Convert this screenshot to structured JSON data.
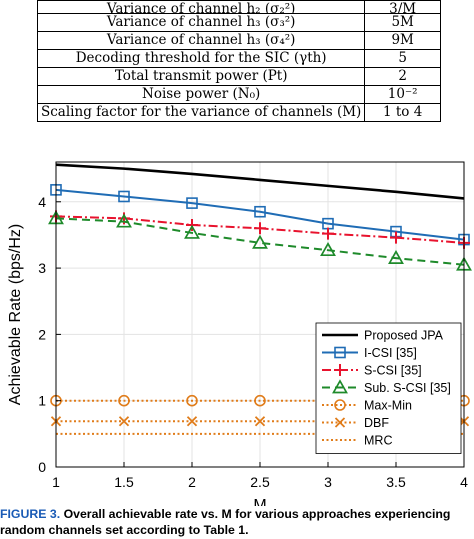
{
  "table": {
    "rows": [
      {
        "param": "Variance of channel h₂ (σ₂²)",
        "value": "3/M"
      },
      {
        "param": "Variance of channel h₃ (σ₃²)",
        "value": "5M"
      },
      {
        "param": "Variance of channel h₃ (σ₄²)",
        "value": "9M"
      },
      {
        "param": "Decoding threshold for the SIC (γth)",
        "value": "5"
      },
      {
        "param": "Total transmit power (Pt)",
        "value": "2"
      },
      {
        "param": "Noise power (N₀)",
        "value": "10⁻²"
      },
      {
        "param": "Scaling factor for the variance of channels (M)",
        "value": "1 to 4"
      }
    ]
  },
  "caption": {
    "label": "FIGURE 3.",
    "text": "Overall achievable rate vs. M for various approaches experiencing random channels set according to Table 1."
  },
  "chart_data": {
    "type": "line",
    "xlabel": "M",
    "ylabel": "Achievable Rate (bps/Hz)",
    "xlim": [
      1,
      4
    ],
    "ylim": [
      0,
      4.6
    ],
    "x": [
      1,
      1.5,
      2,
      2.5,
      3,
      3.5,
      4
    ],
    "xticks": [
      "1",
      "1.5",
      "2",
      "2.5",
      "3",
      "3.5",
      "4"
    ],
    "yticks": [
      "0",
      "1",
      "2",
      "3",
      "4"
    ],
    "grid": true,
    "legend_position": "bottom-right",
    "series": [
      {
        "name": "Proposed JPA",
        "color": "#000000",
        "marker": "none",
        "dash": "solid",
        "values": [
          4.56,
          4.5,
          4.42,
          4.33,
          4.24,
          4.15,
          4.05
        ]
      },
      {
        "name": "I-CSI [35]",
        "color": "#1f6cb5",
        "marker": "square",
        "dash": "solid",
        "values": [
          4.18,
          4.08,
          3.98,
          3.85,
          3.67,
          3.55,
          3.43
        ]
      },
      {
        "name": "S-CSI [35]",
        "color": "#e8132e",
        "marker": "plus",
        "dash": "dashdot",
        "values": [
          3.78,
          3.75,
          3.65,
          3.6,
          3.52,
          3.46,
          3.38
        ]
      },
      {
        "name": "Sub. S-CSI [35]",
        "color": "#1e8a2a",
        "marker": "triangle",
        "dash": "dashed",
        "values": [
          3.75,
          3.7,
          3.53,
          3.38,
          3.27,
          3.15,
          3.05
        ]
      },
      {
        "name": "Max-Min",
        "color": "#e07c1a",
        "marker": "circle",
        "dash": "dotted",
        "values": [
          1.0,
          1.0,
          1.0,
          1.0,
          1.0,
          1.0,
          1.0
        ]
      },
      {
        "name": "DBF",
        "color": "#e07c1a",
        "marker": "x",
        "dash": "dotted",
        "values": [
          0.69,
          0.69,
          0.69,
          0.69,
          0.69,
          0.69,
          0.69
        ]
      },
      {
        "name": "MRC",
        "color": "#e07c1a",
        "marker": "none",
        "dash": "dotted",
        "values": [
          0.5,
          0.5,
          0.5,
          0.5,
          0.5,
          0.5,
          0.5
        ]
      }
    ]
  }
}
